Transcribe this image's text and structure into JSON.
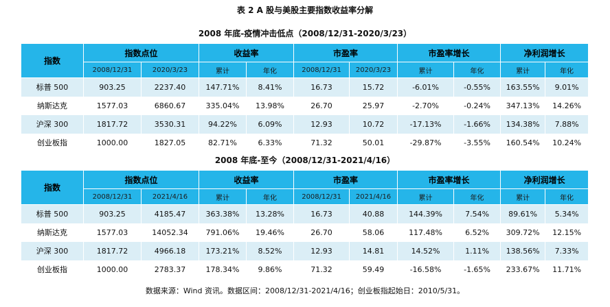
{
  "title": "表 2 A 股与美股主要指数收益率分解",
  "header": {
    "index": "指数",
    "points": "指数点位",
    "return": "收益率",
    "pe": "市盈率",
    "pe_growth": "市盈率增长",
    "profit_growth": "净利润增长",
    "cum": "累计",
    "ann": "年化"
  },
  "tables": [
    {
      "subtitle": "2008 年底-疫情冲击低点（2008/12/31-2020/3/23）",
      "date_start": "2008/12/31",
      "date_end": "2020/3/23",
      "rows": [
        {
          "name": "标普 500",
          "p0": "903.25",
          "p1": "2237.40",
          "rc": "147.71%",
          "ra": "8.41%",
          "pe0": "16.73",
          "pe1": "15.72",
          "pgc": "-6.01%",
          "pga": "-0.55%",
          "ngc": "163.55%",
          "nga": "9.01%"
        },
        {
          "name": "纳斯达克",
          "p0": "1577.03",
          "p1": "6860.67",
          "rc": "335.04%",
          "ra": "13.98%",
          "pe0": "26.70",
          "pe1": "25.97",
          "pgc": "-2.70%",
          "pga": "-0.24%",
          "ngc": "347.13%",
          "nga": "14.26%"
        },
        {
          "name": "沪深 300",
          "p0": "1817.72",
          "p1": "3530.31",
          "rc": "94.22%",
          "ra": "6.09%",
          "pe0": "12.93",
          "pe1": "10.72",
          "pgc": "-17.13%",
          "pga": "-1.66%",
          "ngc": "134.38%",
          "nga": "7.88%"
        },
        {
          "name": "创业板指",
          "p0": "1000.00",
          "p1": "1827.05",
          "rc": "82.71%",
          "ra": "6.33%",
          "pe0": "71.32",
          "pe1": "50.01",
          "pgc": "-29.87%",
          "pga": "-3.55%",
          "ngc": "160.54%",
          "nga": "10.24%"
        }
      ]
    },
    {
      "subtitle": "2008 年底-至今（2008/12/31-2021/4/16）",
      "date_start": "2008/12/31",
      "date_end": "2021/4/16",
      "rows": [
        {
          "name": "标普 500",
          "p0": "903.25",
          "p1": "4185.47",
          "rc": "363.38%",
          "ra": "13.28%",
          "pe0": "16.73",
          "pe1": "40.88",
          "pgc": "144.39%",
          "pga": "7.54%",
          "ngc": "89.61%",
          "nga": "5.34%"
        },
        {
          "name": "纳斯达克",
          "p0": "1577.03",
          "p1": "14052.34",
          "rc": "791.06%",
          "ra": "19.46%",
          "pe0": "26.70",
          "pe1": "58.06",
          "pgc": "117.48%",
          "pga": "6.52%",
          "ngc": "309.72%",
          "nga": "12.15%"
        },
        {
          "name": "沪深 300",
          "p0": "1817.72",
          "p1": "4966.18",
          "rc": "173.21%",
          "ra": "8.52%",
          "pe0": "12.93",
          "pe1": "14.81",
          "pgc": "14.52%",
          "pga": "1.11%",
          "ngc": "138.56%",
          "nga": "7.33%"
        },
        {
          "name": "创业板指",
          "p0": "1000.00",
          "p1": "2783.37",
          "rc": "178.34%",
          "ra": "9.86%",
          "pe0": "71.32",
          "pe1": "59.49",
          "pgc": "-16.58%",
          "pga": "-1.65%",
          "ngc": "233.67%",
          "nga": "11.71%"
        }
      ]
    }
  ],
  "footer": "数据来源：Wind 资讯。数据区间：2008/12/31-2021/4/16；创业板指起始日：2010/5/31。",
  "colors": {
    "header_bg": "#25b5e9",
    "row_alt_bg": "#dbeef6"
  }
}
